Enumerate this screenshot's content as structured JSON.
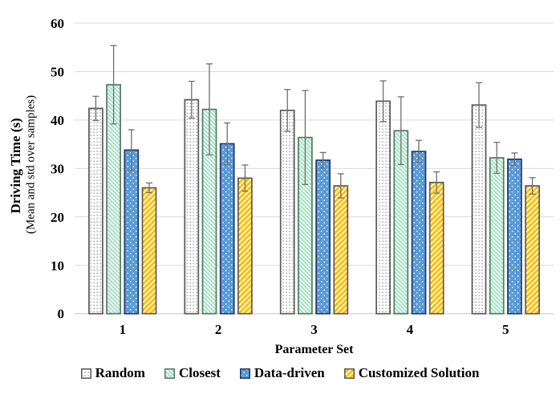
{
  "chart_data": {
    "type": "bar",
    "title": "",
    "categories": [
      "1",
      "2",
      "3",
      "4",
      "5"
    ],
    "xlabel": "Parameter Set",
    "ylabel": "Driving Time (s)",
    "ylabel_subtitle": "(Mean and std over samples)",
    "ylim": [
      0,
      60
    ],
    "yticks": [
      0,
      10,
      20,
      30,
      40,
      50,
      60
    ],
    "grid": true,
    "error_bars": true,
    "legend_position": "bottom",
    "series": [
      {
        "name": "Random",
        "pattern": "dotted-grid",
        "fill": "#FFFFFF",
        "pattern_color": "#8A8A8A",
        "stroke": "#595959",
        "values": [
          42.4,
          44.2,
          42.0,
          43.9,
          43.1
        ],
        "std": [
          2.5,
          3.8,
          4.3,
          4.2,
          4.6
        ]
      },
      {
        "name": "Closest",
        "pattern": "diagonal-down",
        "fill": "#A9E0C6",
        "pattern_color": "#FFFFFF",
        "stroke": "#4E7A62",
        "values": [
          47.3,
          42.2,
          36.4,
          37.8,
          32.2
        ],
        "std": [
          8.1,
          9.4,
          9.7,
          7.0,
          3.2
        ]
      },
      {
        "name": "Data-driven",
        "pattern": "sparse-dots",
        "fill": "#5B9BD5",
        "pattern_color": "#FFFFFF",
        "stroke": "#1F3864",
        "values": [
          33.8,
          35.1,
          31.7,
          33.5,
          31.9
        ],
        "std": [
          4.2,
          4.3,
          1.6,
          2.3,
          1.3
        ]
      },
      {
        "name": "Customized Solution",
        "pattern": "diagonal-up",
        "fill": "#FFFFFF",
        "pattern_color": "#FFC000",
        "stroke": "#595959",
        "values": [
          26.0,
          28.0,
          26.4,
          27.1,
          26.4
        ],
        "std": [
          1.0,
          2.7,
          2.5,
          2.2,
          1.7
        ]
      }
    ],
    "colors": {
      "gridline": "#D9D9D9",
      "axis_line": "#C6C6C6",
      "error_bar": "#6E6E6E",
      "text": "#000000"
    }
  }
}
